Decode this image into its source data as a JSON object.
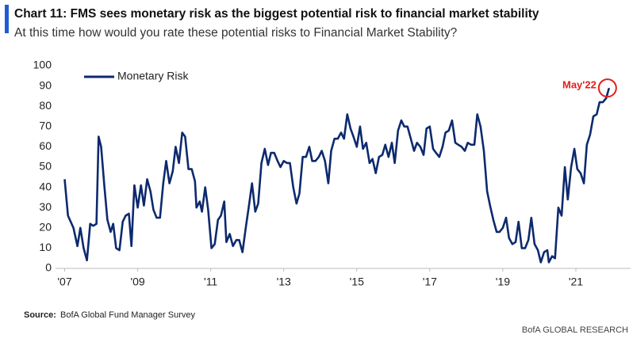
{
  "chart_data": {
    "type": "line",
    "title": "Chart 11: FMS sees monetary risk as the biggest potential risk to financial market stability",
    "subtitle": "At this time how would you rate these potential risks to Financial Market Stability?",
    "source_label": "Source:",
    "source": "BofA Global Fund Manager Survey",
    "footer": "BofA GLOBAL RESEARCH",
    "annotation": "May'22",
    "legend": "upper left",
    "x": [
      2007.0,
      2007.09,
      2007.24,
      2007.35,
      2007.43,
      2007.52,
      2007.61,
      2007.7,
      2007.78,
      2007.87,
      2007.93,
      2008.0,
      2008.09,
      2008.17,
      2008.26,
      2008.33,
      2008.41,
      2008.5,
      2008.59,
      2008.67,
      2008.76,
      2008.83,
      2008.91,
      2009.0,
      2009.09,
      2009.17,
      2009.26,
      2009.35,
      2009.43,
      2009.52,
      2009.61,
      2009.7,
      2009.78,
      2009.87,
      2009.96,
      2010.04,
      2010.13,
      2010.22,
      2010.3,
      2010.39,
      2010.48,
      2010.57,
      2010.61,
      2010.7,
      2010.76,
      2010.85,
      2010.93,
      2011.02,
      2011.11,
      2011.2,
      2011.28,
      2011.37,
      2011.43,
      2011.52,
      2011.61,
      2011.7,
      2011.78,
      2011.87,
      2011.96,
      2012.04,
      2012.13,
      2012.22,
      2012.3,
      2012.39,
      2012.48,
      2012.57,
      2012.65,
      2012.74,
      2012.83,
      2012.91,
      2013.0,
      2013.09,
      2013.17,
      2013.26,
      2013.35,
      2013.43,
      2013.52,
      2013.61,
      2013.7,
      2013.78,
      2013.87,
      2013.96,
      2014.04,
      2014.13,
      2014.22,
      2014.3,
      2014.39,
      2014.48,
      2014.57,
      2014.65,
      2014.74,
      2014.83,
      2014.91,
      2015.0,
      2015.09,
      2015.17,
      2015.26,
      2015.35,
      2015.43,
      2015.52,
      2015.61,
      2015.7,
      2015.78,
      2015.87,
      2015.96,
      2016.04,
      2016.13,
      2016.22,
      2016.3,
      2016.39,
      2016.48,
      2016.57,
      2016.65,
      2016.74,
      2016.83,
      2016.91,
      2017.0,
      2017.09,
      2017.17,
      2017.26,
      2017.35,
      2017.43,
      2017.52,
      2017.61,
      2017.7,
      2017.78,
      2017.87,
      2017.96,
      2018.04,
      2018.13,
      2018.22,
      2018.3,
      2018.39,
      2018.48,
      2018.57,
      2018.65,
      2018.74,
      2018.83,
      2018.91,
      2019.0,
      2019.09,
      2019.17,
      2019.26,
      2019.35,
      2019.43,
      2019.52,
      2019.61,
      2019.7,
      2019.78,
      2019.87,
      2019.96,
      2020.04,
      2020.13,
      2020.22,
      2020.26,
      2020.35,
      2020.43,
      2020.52,
      2020.61,
      2020.7,
      2020.78,
      2020.87,
      2020.96,
      2021.04,
      2021.13,
      2021.22,
      2021.3,
      2021.39,
      2021.48,
      2021.57,
      2021.65,
      2021.74,
      2021.83,
      2021.91
    ],
    "series": [
      {
        "name": "Monetary Risk",
        "color": "#0d2a6e",
        "values": [
          44,
          26,
          20,
          11,
          20,
          10,
          4,
          22,
          21,
          22,
          65,
          60,
          40,
          24,
          18,
          22,
          10,
          9,
          23,
          26,
          27,
          11,
          41,
          30,
          41,
          31,
          44,
          38,
          29,
          25,
          25,
          42,
          53,
          42,
          48,
          60,
          52,
          67,
          65,
          49,
          49,
          43,
          30,
          33,
          28,
          40,
          29,
          10,
          12,
          24,
          26,
          33,
          13,
          17,
          11,
          14,
          14,
          8,
          20,
          30,
          42,
          28,
          32,
          52,
          59,
          51,
          57,
          57,
          53,
          50,
          53,
          52,
          52,
          40,
          32,
          37,
          55,
          55,
          60,
          53,
          53,
          55,
          58,
          53,
          42,
          58,
          64,
          64,
          67,
          64,
          76,
          69,
          65,
          60,
          70,
          59,
          62,
          52,
          54,
          47,
          55,
          56,
          61,
          55,
          62,
          52,
          68,
          73,
          70,
          70,
          64,
          58,
          62,
          60,
          56,
          69,
          70,
          59,
          57,
          55,
          60,
          67,
          68,
          73,
          62,
          61,
          60,
          58,
          62,
          61,
          61,
          76,
          70,
          58,
          38,
          31,
          24,
          18,
          18,
          20,
          25,
          15,
          12,
          13,
          23,
          10,
          10,
          14,
          25,
          12,
          9,
          3,
          8,
          9,
          3,
          6,
          5,
          30,
          26,
          50,
          34,
          50,
          59,
          49,
          47,
          42,
          61,
          66,
          75,
          76,
          82,
          82,
          84,
          89
        ]
      }
    ],
    "xlim": [
      2006.75,
      2022.5
    ],
    "xticks": [
      {
        "value": 2007,
        "label": "'07"
      },
      {
        "value": 2009,
        "label": "'09"
      },
      {
        "value": 2011,
        "label": "'11"
      },
      {
        "value": 2013,
        "label": "'13"
      },
      {
        "value": 2015,
        "label": "'15"
      },
      {
        "value": 2017,
        "label": "'17"
      },
      {
        "value": 2019,
        "label": "'19"
      },
      {
        "value": 2021,
        "label": "'21"
      }
    ],
    "ylim": [
      0,
      100
    ],
    "yticks": [
      0,
      10,
      20,
      30,
      40,
      50,
      60,
      70,
      80,
      90,
      100
    ],
    "grid": false
  }
}
